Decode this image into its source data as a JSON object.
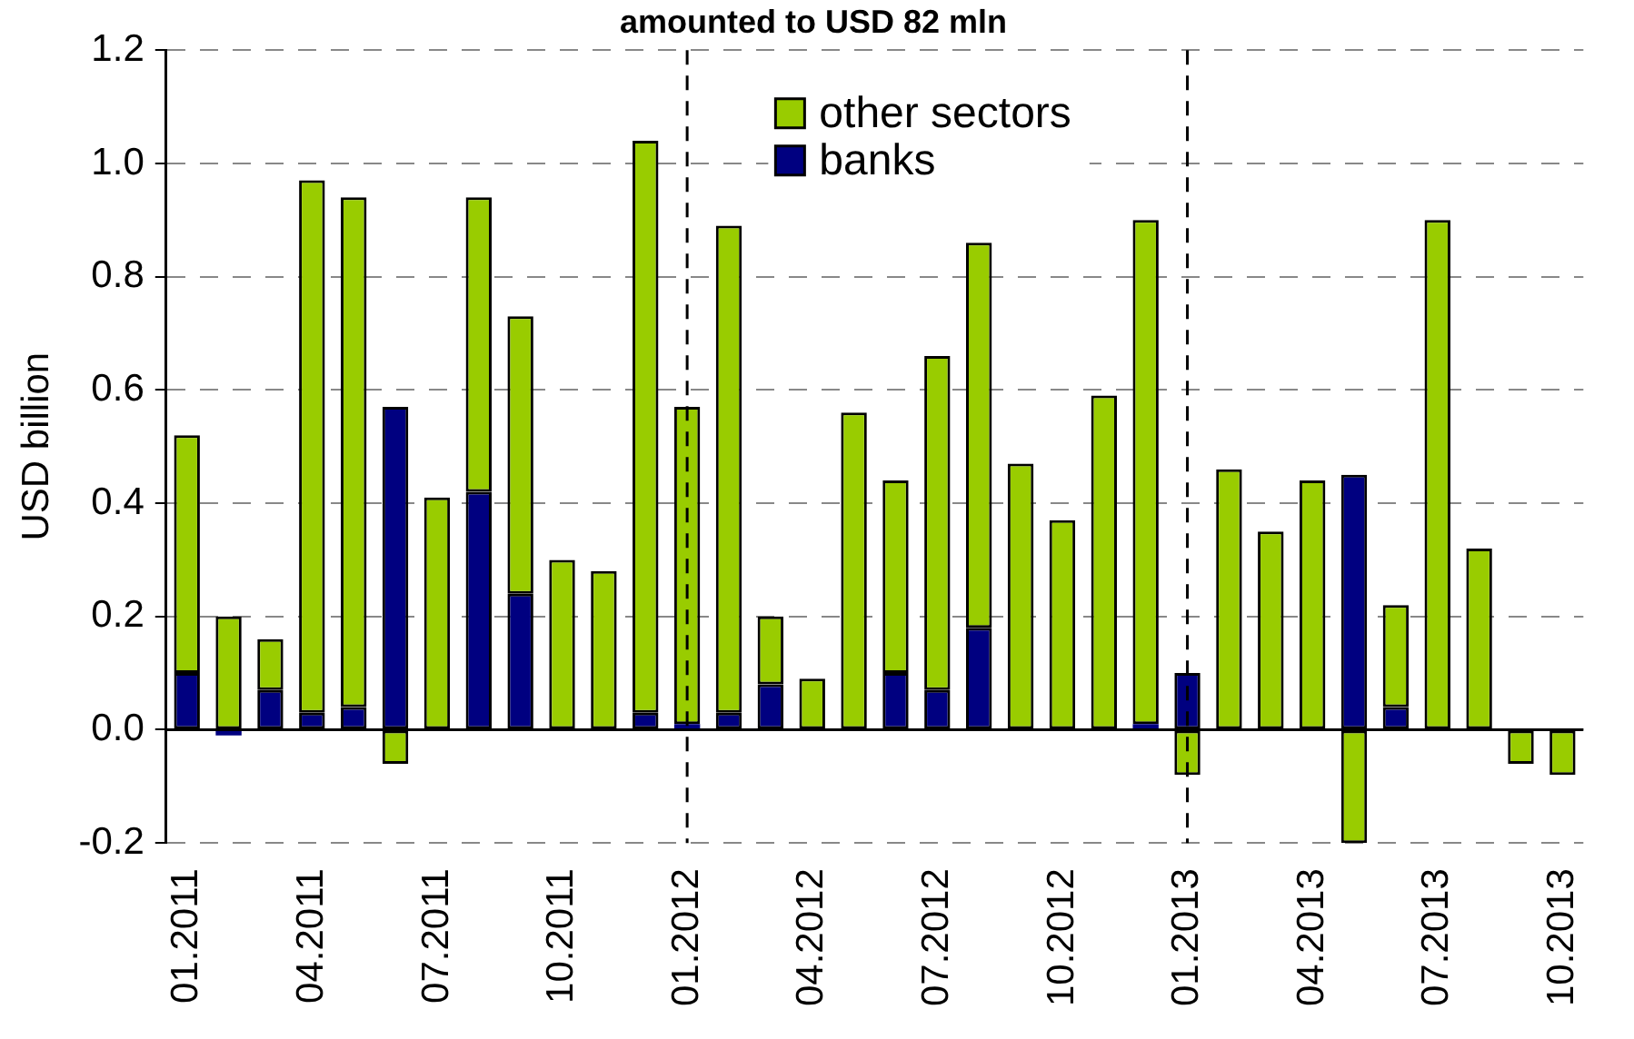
{
  "chart_data": {
    "type": "bar",
    "title": "amounted to USD 82 mln",
    "ylabel": "USD billion",
    "categories": [
      "01.2011",
      null,
      null,
      "04.2011",
      null,
      null,
      "07.2011",
      null,
      null,
      "10.2011",
      null,
      null,
      "01.2012",
      null,
      null,
      "04.2012",
      null,
      null,
      "07.2012",
      null,
      null,
      "10.2012",
      null,
      null,
      "01.2013",
      null,
      null,
      "04.2013",
      null,
      null,
      "07.2013",
      null,
      null,
      "10.2013"
    ],
    "series": [
      {
        "name": "banks",
        "color": "#000080",
        "values": [
          0.1,
          -0.01,
          0.07,
          0.03,
          0.04,
          0.57,
          0,
          0.42,
          0.24,
          0,
          0,
          0.03,
          0.01,
          0.03,
          0.08,
          0,
          0,
          0.1,
          0.07,
          0.18,
          0,
          0,
          0,
          0.01,
          0.1,
          0,
          0,
          0,
          0.45,
          0.04,
          0,
          0,
          0,
          0
        ]
      },
      {
        "name": "other sectors",
        "color": "#99cc00",
        "values": [
          0.42,
          0.2,
          0.09,
          0.94,
          0.9,
          -0.06,
          0.41,
          0.52,
          0.49,
          0.3,
          0.28,
          1.01,
          0.56,
          0.86,
          0.12,
          0.09,
          0.56,
          0.34,
          0.59,
          0.68,
          0.47,
          0.37,
          0.59,
          0.89,
          -0.08,
          0.46,
          0.35,
          0.44,
          -0.2,
          0.18,
          0.9,
          0.32,
          -0.06,
          -0.08
        ]
      }
    ],
    "stacked": true,
    "ylim": [
      -0.2,
      1.2
    ],
    "yticks": [
      -0.2,
      {
        "value": 0,
        "label": "0.0"
      },
      0.2,
      0.4,
      0.6,
      0.8,
      {
        "value": 1,
        "label": "1.0"
      },
      1.2
    ],
    "ref_lines": [
      {
        "axis": "x",
        "value": "01.2012",
        "line_style": "dashed"
      },
      {
        "axis": "x",
        "value": "01.2013",
        "line_style": "dashed"
      }
    ],
    "grid": "y",
    "legend": "top"
  }
}
